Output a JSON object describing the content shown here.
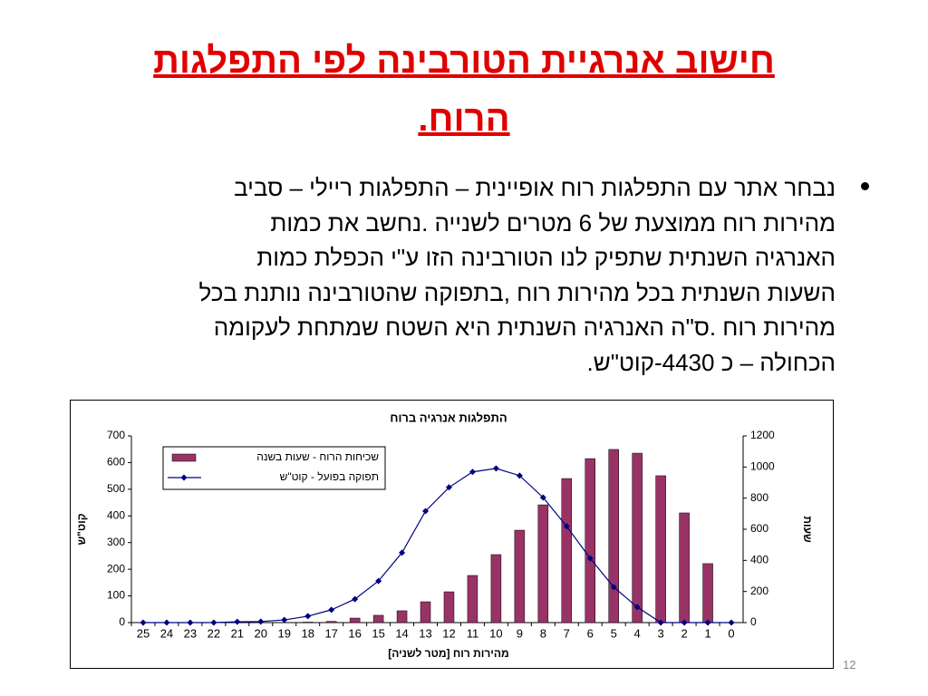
{
  "header": {
    "title_lines": [
      "חישוב אנרגיית הטורבינה לפי התפלגות",
      "הרוח."
    ]
  },
  "body": {
    "lines": [
      "נבחר אתר עם התפלגות רוח אופיינית – התפלגות ריילי – סביב",
      "מהירות רוח ממוצעת של 6 מטרים לשנייה .נחשב את כמות",
      "האנרגיה השנתית שתפיק לנו הטורבינה הזו ע\"י הכפלת כמות",
      "השעות השנתית בכל מהירות רוח ,בתפוקה שהטורבינה נותנת בכל",
      "מהירות רוח .ס\"ה האנרגיה השנתית היא השטח שמתחת לעקומה",
      "הכחולה – כ 4430-קוט\"ש."
    ]
  },
  "slide_number": "12",
  "chart_data": {
    "type": "combo",
    "title": "התפלגות אנרגיה ברוח",
    "xlabel": "מהירות רוח [מטר לשניה]",
    "ylabel": "קוט\"ש",
    "y2label": "שעות",
    "categories": [
      "25",
      "24",
      "23",
      "22",
      "21",
      "20",
      "19",
      "18",
      "17",
      "16",
      "15",
      "14",
      "13",
      "12",
      "11",
      "10",
      "9",
      "8",
      "7",
      "6",
      "5",
      "4",
      "3",
      "2",
      "1",
      "0"
    ],
    "series": [
      {
        "name": "שכיחות הרוח - שעות בשנה",
        "type": "bar",
        "axis": "y2",
        "color": "#993366",
        "values": [
          0,
          0,
          0,
          0,
          0,
          0,
          1,
          3,
          8,
          29,
          47,
          76,
          134,
          198,
          303,
          437,
          594,
          757,
          926,
          1054,
          1113,
          1089,
          944,
          705,
          379,
          0
        ]
      },
      {
        "name": "תפוקה בפועל - קוט\"ש",
        "type": "line",
        "color": "#000080",
        "values": [
          0,
          0,
          0,
          0,
          3,
          4,
          10,
          24,
          48,
          88,
          156,
          262,
          418,
          507,
          565,
          578,
          551,
          469,
          361,
          241,
          133,
          58,
          0,
          0,
          0,
          0
        ]
      }
    ],
    "ylim": [
      0,
      700
    ],
    "yticks": [
      0,
      100,
      200,
      300,
      400,
      500,
      600,
      700
    ],
    "y2lim": [
      0,
      1200
    ],
    "y2ticks": [
      0,
      200,
      400,
      600,
      800,
      1000,
      1200
    ],
    "legend": "top-left"
  }
}
